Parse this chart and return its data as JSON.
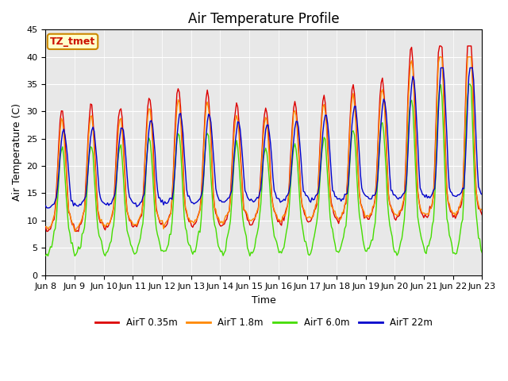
{
  "title": "Air Temperature Profile",
  "ylabel": "Air Temperature (C)",
  "xlabel": "Time",
  "ylim": [
    0,
    45
  ],
  "annotation": "TZ_tmet",
  "colors": {
    "AirT 0.35m": "#dd0000",
    "AirT 1.8m": "#ff8800",
    "AirT 6.0m": "#44dd00",
    "AirT 22m": "#0000cc"
  },
  "legend_labels": [
    "AirT 0.35m",
    "AirT 1.8m",
    "AirT 6.0m",
    "AirT 22m"
  ],
  "xtick_labels": [
    "Jun 8",
    "Jun 9",
    "Jun 10",
    "Jun 11",
    "Jun 12",
    "Jun 13",
    "Jun 14",
    "Jun 15",
    "Jun 16",
    "Jun 17",
    "Jun 18",
    "Jun 19",
    "Jun 20",
    "Jun 21",
    "Jun 22",
    "Jun 23"
  ],
  "ytick_labels": [
    0,
    5,
    10,
    15,
    20,
    25,
    30,
    35,
    40,
    45
  ],
  "bg_color": "#e8e8e8",
  "title_fontsize": 12,
  "axis_label_fontsize": 9,
  "tick_fontsize": 8
}
